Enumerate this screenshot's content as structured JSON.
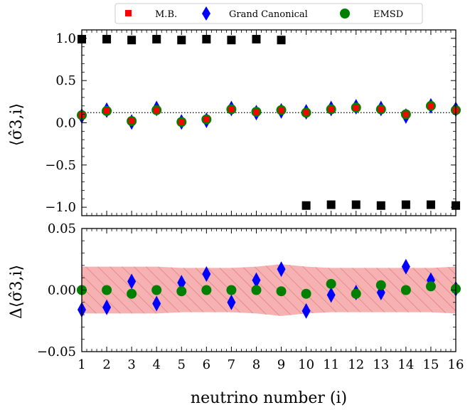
{
  "chart_data": [
    {
      "type": "scatter",
      "panel": "top",
      "ylabel": "⟨σ̂3,i⟩",
      "ylim": [
        -1.1,
        1.1
      ],
      "yticks": [
        -1.0,
        -0.5,
        0.0,
        0.5,
        1.0
      ],
      "ytick_labels": [
        "−1.0",
        "−0.5",
        "0.0",
        "0.5",
        "1.0"
      ],
      "xlim": [
        1,
        16
      ],
      "reference_line_y": 0.12,
      "legend": {
        "placement": "top-center",
        "entries": [
          {
            "label": "M.B.",
            "marker": "square",
            "color": "#ff0000"
          },
          {
            "label": "Grand Canonical",
            "marker": "diamond",
            "color": "#0000ff"
          },
          {
            "label": "EMSD",
            "marker": "circle",
            "color": "#008000"
          }
        ]
      },
      "series": [
        {
          "name": "M.B.",
          "marker": "square",
          "color": "#ff0000",
          "x": [
            1,
            2,
            3,
            4,
            5,
            6,
            7,
            8,
            9,
            10,
            11,
            12,
            13,
            14,
            15,
            16
          ],
          "values": [
            0.09,
            0.14,
            0.02,
            0.15,
            0.01,
            0.04,
            0.16,
            0.13,
            0.15,
            0.12,
            0.16,
            0.18,
            0.16,
            0.1,
            0.2,
            0.15
          ]
        },
        {
          "name": "Grand Canonical",
          "marker": "diamond",
          "color": "#0000ff",
          "x": [
            1,
            2,
            3,
            4,
            5,
            6,
            7,
            8,
            9,
            10,
            11,
            12,
            13,
            14,
            15,
            16
          ],
          "values": [
            0.08,
            0.15,
            0.01,
            0.17,
            0.01,
            0.03,
            0.17,
            0.12,
            0.14,
            0.13,
            0.17,
            0.19,
            0.17,
            0.08,
            0.2,
            0.16
          ]
        },
        {
          "name": "EMSD",
          "marker": "circle",
          "color": "#008000",
          "x": [
            1,
            2,
            3,
            4,
            5,
            6,
            7,
            8,
            9,
            10,
            11,
            12,
            13,
            14,
            15,
            16
          ],
          "values": [
            0.09,
            0.14,
            0.02,
            0.15,
            0.01,
            0.04,
            0.16,
            0.13,
            0.15,
            0.12,
            0.16,
            0.18,
            0.16,
            0.1,
            0.2,
            0.15
          ]
        },
        {
          "name": "",
          "marker": "square",
          "color": "#000000",
          "x": [
            1,
            2,
            3,
            4,
            5,
            6,
            7,
            8,
            9,
            10,
            11,
            12,
            13,
            14,
            15,
            16
          ],
          "values": [
            0.99,
            0.99,
            0.98,
            0.99,
            0.98,
            0.99,
            0.98,
            0.99,
            0.98,
            -0.98,
            -0.97,
            -0.97,
            -0.98,
            -0.97,
            -0.97,
            -0.98
          ]
        }
      ]
    },
    {
      "type": "scatter",
      "panel": "bottom",
      "ylabel": "Δ⟨σ̂3,i⟩",
      "xlabel": "neutrino number (i)",
      "ylim": [
        -0.05,
        0.05
      ],
      "yticks": [
        -0.05,
        0.0,
        0.05
      ],
      "ytick_labels": [
        "−0.05",
        "0.00",
        "0.05"
      ],
      "xlim": [
        1,
        16
      ],
      "xticks": [
        1,
        2,
        3,
        4,
        5,
        6,
        7,
        8,
        9,
        10,
        11,
        12,
        13,
        14,
        15,
        16
      ],
      "xtick_labels": [
        "1",
        "2",
        "3",
        "4",
        "5",
        "6",
        "7",
        "8",
        "9",
        "10",
        "11",
        "12",
        "13",
        "14",
        "15",
        "16"
      ],
      "band": {
        "color": "#f4a4a4",
        "hatch": true,
        "x": [
          1,
          2,
          3,
          4,
          5,
          6,
          7,
          8,
          9,
          10,
          11,
          12,
          13,
          14,
          15,
          16
        ],
        "upper": [
          0.019,
          0.019,
          0.019,
          0.019,
          0.018,
          0.018,
          0.018,
          0.019,
          0.021,
          0.019,
          0.018,
          0.018,
          0.018,
          0.018,
          0.018,
          0.019
        ],
        "lower": [
          -0.019,
          -0.019,
          -0.019,
          -0.019,
          -0.018,
          -0.018,
          -0.018,
          -0.019,
          -0.021,
          -0.019,
          -0.018,
          -0.018,
          -0.018,
          -0.018,
          -0.018,
          -0.019
        ]
      },
      "series": [
        {
          "name": "Grand Canonical",
          "marker": "diamond",
          "color": "#0000ff",
          "x": [
            1,
            2,
            3,
            4,
            5,
            6,
            7,
            8,
            9,
            10,
            11,
            12,
            13,
            14,
            15,
            16
          ],
          "values": [
            -0.016,
            -0.014,
            0.007,
            -0.011,
            0.006,
            0.013,
            -0.01,
            0.008,
            0.017,
            -0.017,
            -0.004,
            -0.002,
            -0.002,
            0.019,
            0.008,
            0.001
          ]
        },
        {
          "name": "EMSD",
          "marker": "circle",
          "color": "#008000",
          "x": [
            1,
            2,
            3,
            4,
            5,
            6,
            7,
            8,
            9,
            10,
            11,
            12,
            13,
            14,
            15,
            16
          ],
          "values": [
            0.0,
            0.0,
            -0.003,
            0.0,
            -0.001,
            0.0,
            0.0,
            0.0,
            -0.001,
            -0.003,
            0.005,
            -0.003,
            0.004,
            0.0,
            0.003,
            0.001
          ]
        }
      ]
    }
  ]
}
